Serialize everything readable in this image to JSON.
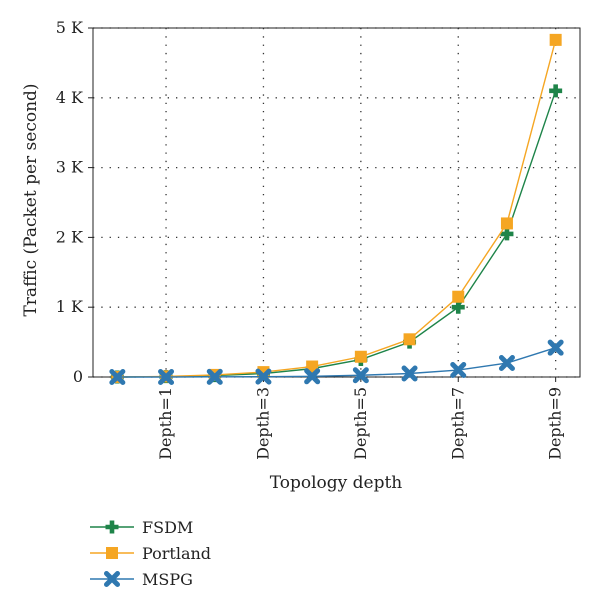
{
  "chart_data": {
    "type": "line",
    "xlabel": "Topology depth",
    "ylabel": "Traffic (Packet per second)",
    "ylim": [
      0,
      5000
    ],
    "yticks": [
      {
        "value": 0,
        "label": "0"
      },
      {
        "value": 1000,
        "label": "1 K"
      },
      {
        "value": 2000,
        "label": "2 K"
      },
      {
        "value": 3000,
        "label": "3 K"
      },
      {
        "value": 4000,
        "label": "4 K"
      },
      {
        "value": 5000,
        "label": "5 K"
      }
    ],
    "x_categories": [
      "",
      "Depth=1",
      "",
      "Depth=3",
      "",
      "Depth=5",
      "",
      "Depth=7",
      "",
      "Depth=9"
    ],
    "grid": true,
    "legend_position": "bottom-left",
    "series": [
      {
        "name": "FSDM",
        "color": "#1e8449",
        "marker": "plus",
        "values": [
          0,
          5,
          20,
          50,
          120,
          250,
          500,
          1000,
          2050,
          4100
        ]
      },
      {
        "name": "Portland",
        "color": "#f5a623",
        "marker": "square",
        "values": [
          0,
          8,
          30,
          70,
          150,
          290,
          540,
          1150,
          2200,
          4830
        ]
      },
      {
        "name": "MSPG",
        "color": "#2f78b0",
        "marker": "x",
        "values": [
          0,
          0,
          2,
          5,
          10,
          25,
          50,
          100,
          200,
          420
        ]
      }
    ]
  }
}
